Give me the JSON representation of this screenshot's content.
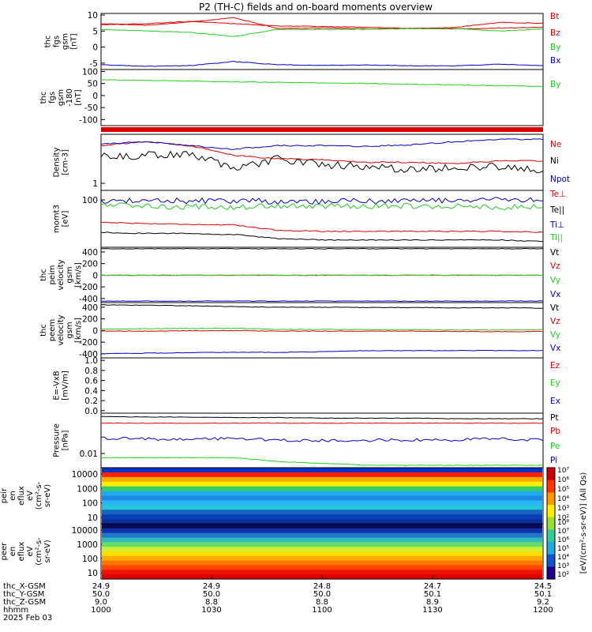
{
  "title": "P2 (TH-C) fields and on-board moments overview",
  "colors": {
    "black": "#000000",
    "red": "#dd0000",
    "green": "#22cc22",
    "blue": "#0000cc"
  },
  "chart_data": [
    {
      "type": "line",
      "panel": "fgs_gsm",
      "ylabel": [
        "thc",
        "fgs",
        "gsm",
        "[nT]"
      ],
      "ylim": [
        -7,
        10.5
      ],
      "yticks": [
        "10",
        "5",
        "0",
        "-5"
      ],
      "series": [
        {
          "name": "Bt",
          "color": "red",
          "key": "bt",
          "values": [
            7,
            7.3,
            8,
            7.3,
            6.6,
            6.4,
            6.2,
            5.8,
            5.7,
            5.9,
            6.2
          ]
        },
        {
          "name": "Bz",
          "color": "red",
          "key": "bz",
          "values": [
            7.3,
            6.8,
            7.8,
            9.2,
            5.8,
            6,
            5.7,
            5.8,
            6.1,
            7.7,
            7.4
          ]
        },
        {
          "name": "By",
          "color": "green",
          "key": "by",
          "values": [
            5.5,
            5.1,
            4.6,
            3.3,
            5.5,
            5.5,
            5.6,
            5.7,
            5.8,
            5,
            5.6
          ]
        },
        {
          "name": "Bx",
          "color": "blue",
          "key": "bx",
          "values": [
            -5.5,
            -6,
            -5.8,
            -4.5,
            -5.5,
            -5.7,
            -5.6,
            -5.8,
            -5.9,
            -5.3,
            -5.8
          ]
        }
      ]
    },
    {
      "type": "line",
      "panel": "fgs_gsm_m180",
      "ylabel": [
        "thc",
        "fgs",
        "gsm",
        "-180",
        "[nT]"
      ],
      "ylim": [
        -125,
        108
      ],
      "yticks": [
        "100",
        "50",
        "0",
        "-50",
        "-100"
      ],
      "series": [
        {
          "name": "By",
          "color": "green",
          "key": "by2",
          "values": [
            65,
            63,
            60,
            57,
            55,
            52,
            50,
            47,
            44,
            41,
            38
          ]
        }
      ]
    },
    {
      "type": "line",
      "panel": "density",
      "ylabel": [
        "Density",
        "[cm-3]"
      ],
      "yscale": "log",
      "yticks": [
        "1"
      ],
      "series": [
        {
          "name": "Ne",
          "color": "red",
          "key": "ne",
          "values": [
            4,
            4.6,
            4,
            2.8,
            2.5,
            2.4,
            2.2,
            2.2,
            2.1,
            2.3,
            2.3
          ]
        },
        {
          "name": "Ni",
          "color": "black",
          "key": "ni",
          "values": [
            2.7,
            2.8,
            3,
            1.6,
            2.5,
            2,
            1.9,
            1.7,
            1.8,
            1.9,
            1.7
          ]
        },
        {
          "name": "Npot",
          "color": "blue",
          "key": "npot",
          "values": [
            4.2,
            4.6,
            4,
            3.5,
            4,
            4,
            3.9,
            4.1,
            4.6,
            5,
            5
          ]
        }
      ]
    },
    {
      "type": "line",
      "panel": "moments",
      "ylabel": [
        "momt3",
        "[eV]"
      ],
      "yscale": "log",
      "yticks": [
        "100"
      ],
      "series": [
        {
          "name": "Te⊥",
          "color": "red",
          "key": "teperp",
          "values": [
            32,
            30,
            29,
            28,
            22,
            21,
            21,
            21,
            21,
            21,
            20
          ]
        },
        {
          "name": "Te||",
          "color": "black",
          "key": "tepar",
          "values": [
            20,
            19,
            19,
            18,
            15,
            14,
            14,
            14,
            14,
            14,
            13
          ]
        },
        {
          "name": "Ti⊥",
          "color": "blue",
          "key": "tiperp",
          "values": [
            88,
            87,
            86,
            85,
            84,
            84,
            85,
            85,
            86,
            90,
            86
          ]
        },
        {
          "name": "Ti||",
          "color": "green",
          "key": "tipar",
          "values": [
            70,
            68,
            66,
            65,
            66,
            67,
            68,
            68,
            68,
            64,
            65
          ]
        }
      ]
    },
    {
      "type": "line",
      "panel": "peim_velocity",
      "ylabel": [
        "thc",
        "peim",
        "velocity",
        "gsm",
        "[km/s]"
      ],
      "ylim": [
        -470,
        480
      ],
      "yticks": [
        "400",
        "200",
        "0",
        "-200",
        "-400"
      ],
      "series": [
        {
          "name": "Vt",
          "color": "black",
          "key": "vt1",
          "values": [
            455,
            455,
            455,
            455,
            455,
            455,
            455,
            455,
            455,
            455,
            455
          ]
        },
        {
          "name": "Vz",
          "color": "red",
          "key": "vz1",
          "values": [
            0,
            0,
            0,
            0,
            0,
            0,
            0,
            0,
            0,
            0,
            0
          ]
        },
        {
          "name": "Vy",
          "color": "green",
          "key": "vy1",
          "values": [
            0,
            0,
            0,
            0,
            0,
            0,
            0,
            0,
            0,
            0,
            0
          ]
        },
        {
          "name": "Vx",
          "color": "blue",
          "key": "vx1",
          "values": [
            -445,
            -445,
            -445,
            -445,
            -445,
            -445,
            -445,
            -445,
            -445,
            -445,
            -445
          ]
        }
      ]
    },
    {
      "type": "line",
      "panel": "peem_velocity",
      "ylabel": [
        "thc",
        "peem",
        "velocity",
        "gsm",
        "[km/s]"
      ],
      "ylim": [
        -470,
        480
      ],
      "yticks": [
        "400",
        "200",
        "0",
        "-200",
        "-400"
      ],
      "series": [
        {
          "name": "Vt",
          "color": "black",
          "key": "vt2",
          "values": [
            440,
            435,
            425,
            410,
            400,
            400,
            395,
            395,
            390,
            390,
            385
          ]
        },
        {
          "name": "Vz",
          "color": "red",
          "key": "vz2",
          "values": [
            -10,
            -10,
            -5,
            0,
            -10,
            -10,
            -10,
            -10,
            -15,
            -20,
            -15
          ]
        },
        {
          "name": "Vy",
          "color": "green",
          "key": "vy2",
          "values": [
            25,
            30,
            35,
            40,
            20,
            20,
            15,
            15,
            10,
            10,
            15
          ]
        },
        {
          "name": "Vx",
          "color": "blue",
          "key": "vx2",
          "values": [
            -400,
            -390,
            -380,
            -375,
            -375,
            -365,
            -345,
            -345,
            -345,
            -345,
            -345
          ]
        }
      ]
    },
    {
      "type": "line",
      "panel": "efield",
      "ylabel": [
        "E=-VxB",
        "[mV/m]"
      ],
      "ylim": [
        -0.05,
        1.05
      ],
      "yticks": [
        "1.0",
        "0.8",
        "0.6",
        "0.4",
        "0.2",
        "0.0"
      ],
      "series": [
        {
          "name": "Ez",
          "color": "red",
          "key": "ez",
          "values": []
        },
        {
          "name": "Ey",
          "color": "green",
          "key": "ey",
          "values": []
        },
        {
          "name": "Ex",
          "color": "blue",
          "key": "ex",
          "values": []
        }
      ]
    },
    {
      "type": "line",
      "panel": "pressure",
      "ylabel": [
        "Pressure",
        "[nPa]"
      ],
      "yscale": "log",
      "yticks": [
        "0.01"
      ],
      "series": [
        {
          "name": "Pt",
          "color": "black",
          "key": "pt",
          "values": [
            0.22,
            0.21,
            0.21,
            0.2,
            0.2,
            0.19,
            0.19,
            0.19,
            0.18,
            0.18,
            0.18
          ]
        },
        {
          "name": "Pb",
          "color": "red",
          "key": "pb",
          "values": [
            0.12,
            0.12,
            0.12,
            0.12,
            0.12,
            0.12,
            0.12,
            0.12,
            0.12,
            0.12,
            0.12
          ]
        },
        {
          "name": "Pe",
          "color": "green",
          "key": "pe",
          "values": [
            0.005,
            0.005,
            0.005,
            0.005,
            0.0035,
            0.003,
            0.0025,
            0.0025,
            0.0025,
            0.0025,
            0.0025
          ]
        },
        {
          "name": "Pi",
          "color": "blue",
          "key": "pi",
          "values": [
            0.03,
            0.028,
            0.026,
            0.03,
            0.025,
            0.024,
            0.025,
            0.026,
            0.026,
            0.028,
            0.025
          ]
        }
      ]
    },
    {
      "type": "heatmap",
      "panel": "peir",
      "ylabel": [
        "thc",
        "peir",
        "en",
        "eflux",
        "eV",
        "(cm²-s-",
        "sr-eV)"
      ],
      "yscale": "log",
      "yticks": [
        "10000",
        "1000",
        "100",
        "10"
      ]
    },
    {
      "type": "heatmap",
      "panel": "peer",
      "ylabel": [
        "thc",
        "peer",
        "en",
        "eflux",
        "eV",
        "(cm²-s-",
        "sr-eV)"
      ],
      "yscale": "log",
      "yticks": [
        "10000",
        "1000",
        "100",
        "10"
      ]
    }
  ],
  "colorbar": {
    "label": "[eV/(cm²-s-sr-eV)] (All Qs)",
    "upper_ticks": [
      "10⁷",
      "10⁶",
      "10⁵",
      "10⁴",
      "10³",
      "10²"
    ],
    "lower_ticks": [
      "10⁸",
      "10⁷",
      "10⁶",
      "10⁵",
      "10⁴",
      "10³",
      "10²"
    ]
  },
  "xaxis": {
    "row_labels": [
      "thc_X-GSM",
      "thc_Y-GSM",
      "thc_Z-GSM",
      "hhmm",
      "2025 Feb 03"
    ],
    "ticks": [
      {
        "x": "24.9",
        "y": "50.0",
        "z": "9.0",
        "hhmm": "1000"
      },
      {
        "x": "24.9",
        "y": "50.0",
        "z": "8.8",
        "hhmm": "1030"
      },
      {
        "x": "24.8",
        "y": "50.0",
        "z": "8.8",
        "hhmm": "1100"
      },
      {
        "x": "24.7",
        "y": "50.1",
        "z": "8.9",
        "hhmm": "1130"
      },
      {
        "x": "24.5",
        "y": "50.1",
        "z": "9.2",
        "hhmm": "1200"
      }
    ]
  }
}
